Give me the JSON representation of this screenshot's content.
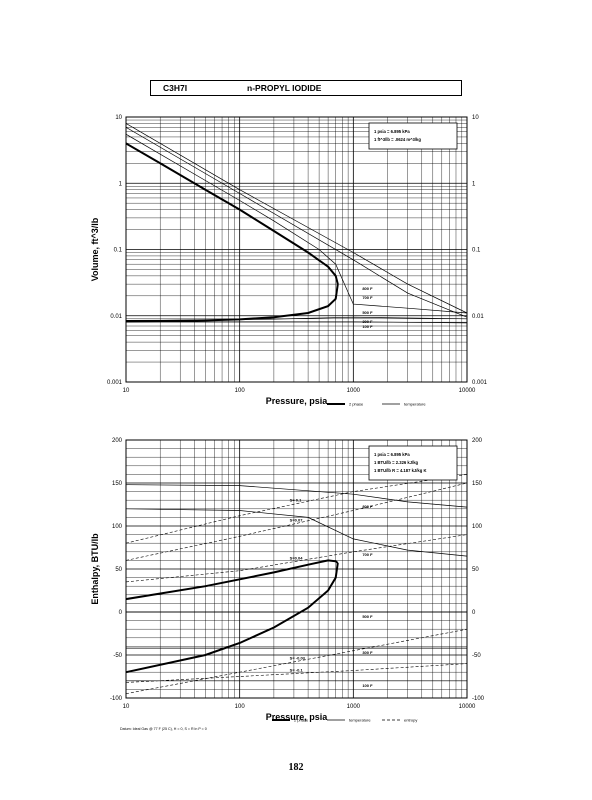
{
  "header": {
    "formula": "C3H7I",
    "compound_name": "n-PROPYL IODIDE"
  },
  "page_number": "182",
  "chart_data": [
    {
      "type": "line",
      "ylabel": "Volume, ft^3/lb",
      "xlabel": "Pressure, psia",
      "x_scale": "log",
      "y_scale": "log",
      "xlim": [
        10,
        10000
      ],
      "ylim": [
        0.001,
        10
      ],
      "x_ticks": [
        "10",
        "100",
        "1000",
        "10000"
      ],
      "y_ticks_left": [
        "10",
        "1",
        "0.1",
        "0.01",
        "0.001"
      ],
      "y_ticks_right": [
        "10",
        "1",
        "0.1",
        "0.01",
        "0.001"
      ],
      "conversion_box": [
        "1 psia = 6.895 kPa",
        "1 ft^3/lb = .0624 m^3/kg"
      ],
      "legend": [
        {
          "label": "2 phase",
          "style": "thick-solid"
        },
        {
          "label": "temperature",
          "style": "thin-solid"
        }
      ],
      "dome": {
        "vapor": {
          "x": [
            10,
            20,
            50,
            100,
            200,
            400,
            600,
            700,
            730
          ],
          "y": [
            4.0,
            2.0,
            0.8,
            0.4,
            0.19,
            0.09,
            0.055,
            0.04,
            0.03
          ]
        },
        "liquid": {
          "x": [
            10,
            50,
            100,
            200,
            400,
            600,
            700,
            730
          ],
          "y": [
            0.0082,
            0.0085,
            0.0088,
            0.0095,
            0.011,
            0.014,
            0.018,
            0.03
          ]
        }
      },
      "isotherms": [
        {
          "label": "800 F",
          "x": [
            10,
            100,
            1000,
            3000,
            10000
          ],
          "y": [
            8.0,
            0.8,
            0.09,
            0.03,
            0.011
          ]
        },
        {
          "label": "700 F",
          "x": [
            10,
            100,
            1000,
            3000,
            10000
          ],
          "y": [
            7.0,
            0.7,
            0.07,
            0.022,
            0.0095
          ]
        },
        {
          "label": "500 F",
          "x": [
            10,
            50,
            100,
            200,
            500,
            700,
            1000,
            3000,
            10000
          ],
          "y": [
            5.5,
            1.1,
            0.55,
            0.27,
            0.1,
            0.06,
            0.015,
            0.013,
            0.011
          ]
        },
        {
          "label": "300 F",
          "x": [
            10,
            50,
            200,
            1000,
            10000
          ],
          "y": [
            0.0085,
            0.0086,
            0.0089,
            0.0095,
            0.009
          ]
        },
        {
          "label": "100 F",
          "x": [
            10,
            100,
            1000,
            10000
          ],
          "y": [
            0.0081,
            0.0081,
            0.0081,
            0.0078
          ]
        }
      ]
    },
    {
      "type": "line",
      "ylabel": "Enthalpy, BTU/lb",
      "xlabel": "Pressure, psia",
      "x_scale": "log",
      "y_scale": "linear",
      "xlim": [
        10,
        10000
      ],
      "ylim": [
        -100,
        200
      ],
      "x_ticks": [
        "10",
        "100",
        "1000",
        "10000"
      ],
      "y_ticks_left": [
        "200",
        "150",
        "100",
        "50",
        "0",
        "-50",
        "-100"
      ],
      "y_ticks_right": [
        "200",
        "150",
        "100",
        "50",
        "0",
        "-50",
        "-100"
      ],
      "conversion_box": [
        "1 psia = 6.895 kPa",
        "1 BTU/lb = 2.326 kJ/kg",
        "1 BTU/lb R = 4.187 kJ/kg K"
      ],
      "legend": [
        {
          "label": "2 phase",
          "style": "thick-solid"
        },
        {
          "label": "temperature",
          "style": "thin-solid"
        },
        {
          "label": "entropy",
          "style": "dashed"
        }
      ],
      "footnote": "Datum: Ideal Gas @ 77 F (25 C), H = 0, S = R ln P = 0",
      "dome": {
        "vapor": {
          "x": [
            10,
            50,
            100,
            200,
            400,
            600,
            700,
            730
          ],
          "y": [
            15,
            30,
            38,
            46,
            55,
            60,
            59,
            57
          ]
        },
        "liquid": {
          "x": [
            10,
            50,
            100,
            200,
            400,
            600,
            700,
            730
          ],
          "y": [
            -70,
            -50,
            -36,
            -18,
            5,
            25,
            40,
            57
          ]
        }
      },
      "isotherms": [
        {
          "label": "800 F",
          "x": [
            10,
            100,
            1000,
            3000,
            10000
          ],
          "y": [
            148,
            147,
            137,
            128,
            122
          ]
        },
        {
          "label": "700 F",
          "x": [
            10,
            100,
            400,
            1000,
            3000,
            10000
          ],
          "y": [
            120,
            118,
            110,
            85,
            72,
            65
          ]
        },
        {
          "label": "500 F",
          "x": [
            10,
            100,
            1000,
            10000
          ],
          "y": [
            0,
            0,
            0,
            0
          ]
        },
        {
          "label": "300 F",
          "x": [
            10,
            100,
            1000,
            10000
          ],
          "y": [
            -42,
            -42,
            -42,
            -42
          ]
        },
        {
          "label": "100 F",
          "x": [
            10,
            100,
            1000,
            10000
          ],
          "y": [
            -80,
            -80,
            -80,
            -80
          ]
        }
      ],
      "entropy_lines": [
        {
          "label": "S= 0.1",
          "x": [
            10,
            100,
            1000,
            10000
          ],
          "y": [
            80,
            112,
            140,
            160
          ]
        },
        {
          "label": "S=0.07",
          "x": [
            10,
            100,
            1000,
            10000
          ],
          "y": [
            60,
            88,
            118,
            150
          ]
        },
        {
          "label": "S=0.04",
          "x": [
            10,
            100,
            1000,
            10000
          ],
          "y": [
            35,
            48,
            70,
            90
          ]
        },
        {
          "label": "S= -0.03",
          "x": [
            10,
            100,
            1000,
            10000
          ],
          "y": [
            -95,
            -70,
            -45,
            -20
          ]
        },
        {
          "label": "S= -0.1",
          "x": [
            10,
            100,
            1000,
            10000
          ],
          "y": [
            -82,
            -75,
            -68,
            -60
          ]
        }
      ]
    }
  ]
}
